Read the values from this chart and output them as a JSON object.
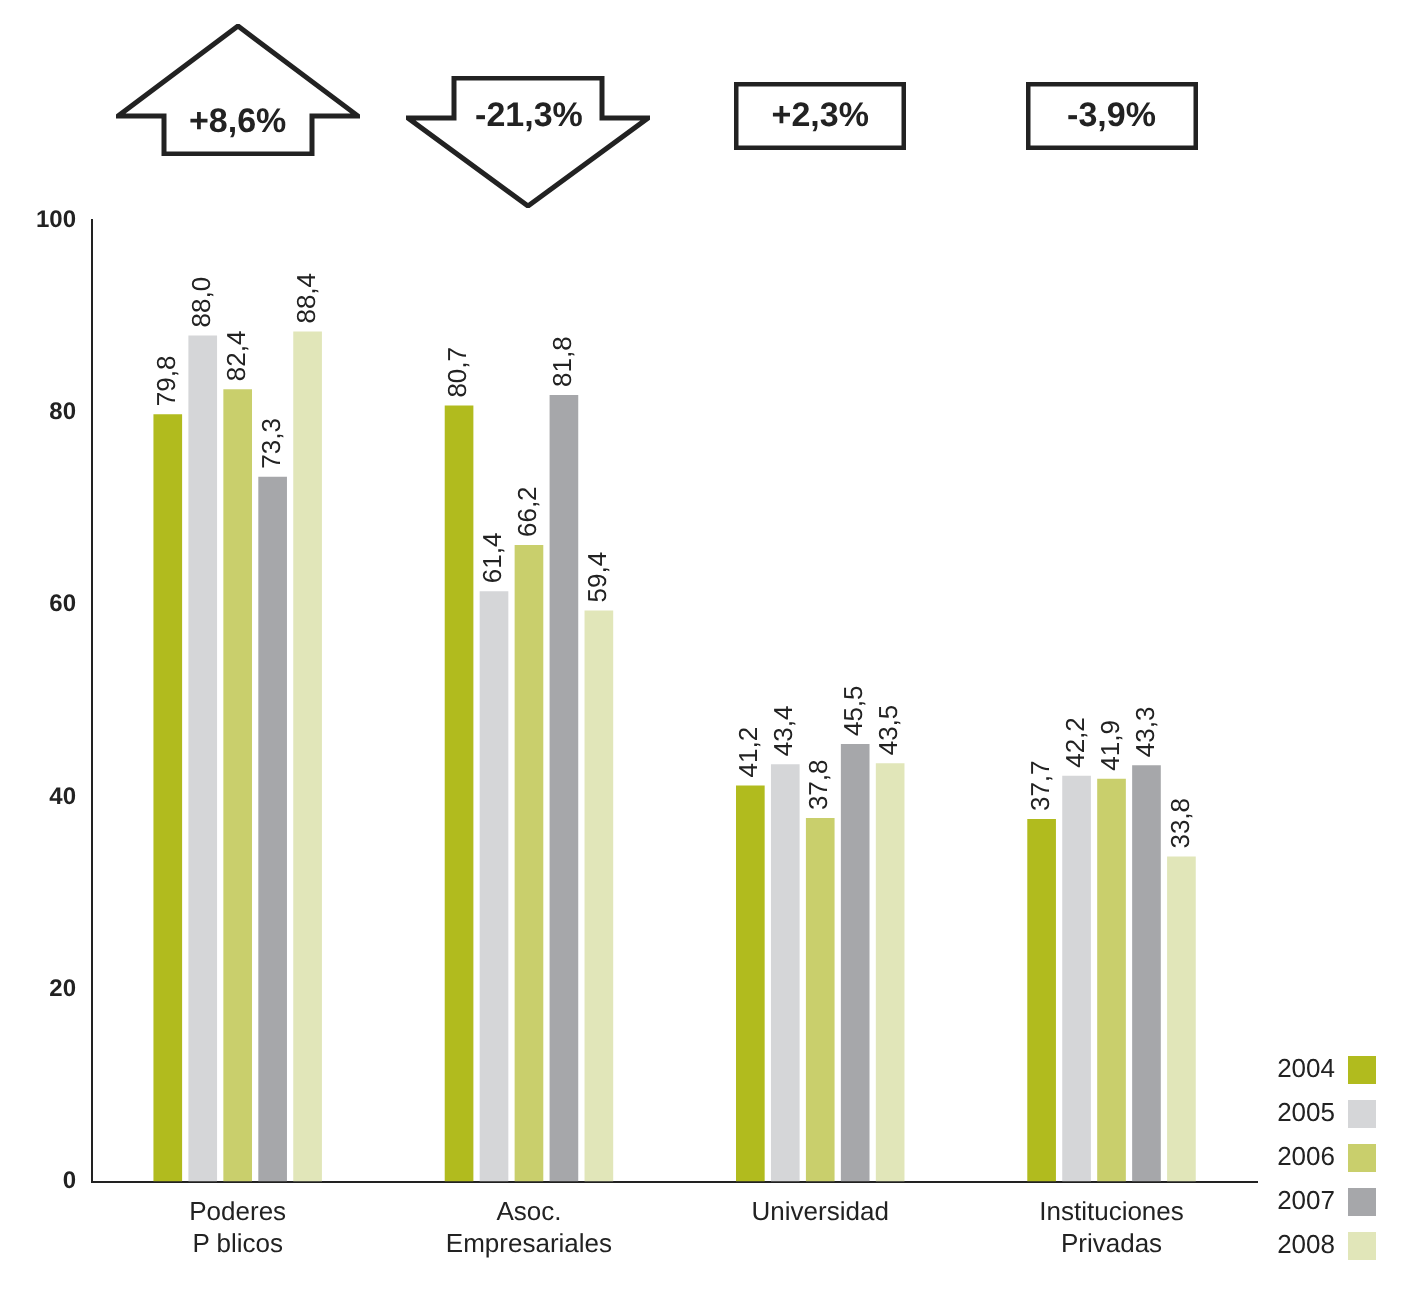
{
  "chart_data": {
    "type": "bar",
    "categories": [
      "Poderes\nP blicos",
      "Asoc.\nEmpresariales",
      "Universidad",
      "Instituciones\nPrivadas"
    ],
    "series": [
      {
        "name": "2004",
        "color": "#b1bb1e",
        "values": [
          79.8,
          80.7,
          41.2,
          37.7
        ],
        "value_labels": [
          "79,8",
          "80,7",
          "41,2",
          "37,7"
        ]
      },
      {
        "name": "2005",
        "color": "#d5d6d8",
        "values": [
          88.0,
          61.4,
          43.4,
          42.2
        ],
        "value_labels": [
          "88,0",
          "61,4",
          "43,4",
          "42,2"
        ]
      },
      {
        "name": "2006",
        "color": "#c9cf6c",
        "values": [
          82.4,
          66.2,
          37.8,
          41.9
        ],
        "value_labels": [
          "82,4",
          "66,2",
          "37,8",
          "41,9"
        ]
      },
      {
        "name": "2007",
        "color": "#a6a7aa",
        "values": [
          73.3,
          81.8,
          45.5,
          43.3
        ],
        "value_labels": [
          "73,3",
          "81,8",
          "45,5",
          "43,3"
        ]
      },
      {
        "name": "2008",
        "color": "#e1e6b9",
        "values": [
          88.4,
          59.4,
          43.5,
          33.8
        ],
        "value_labels": [
          "88,4",
          "59,4",
          "43,5",
          "33,8"
        ]
      }
    ],
    "ylim": [
      0,
      100
    ],
    "yticks": [
      0,
      20,
      40,
      60,
      80,
      100
    ],
    "grid": false,
    "legend": "bottom right",
    "annotations": [
      "+8,6%",
      "-21,3%",
      "+2,3%",
      "-3,9%"
    ]
  }
}
